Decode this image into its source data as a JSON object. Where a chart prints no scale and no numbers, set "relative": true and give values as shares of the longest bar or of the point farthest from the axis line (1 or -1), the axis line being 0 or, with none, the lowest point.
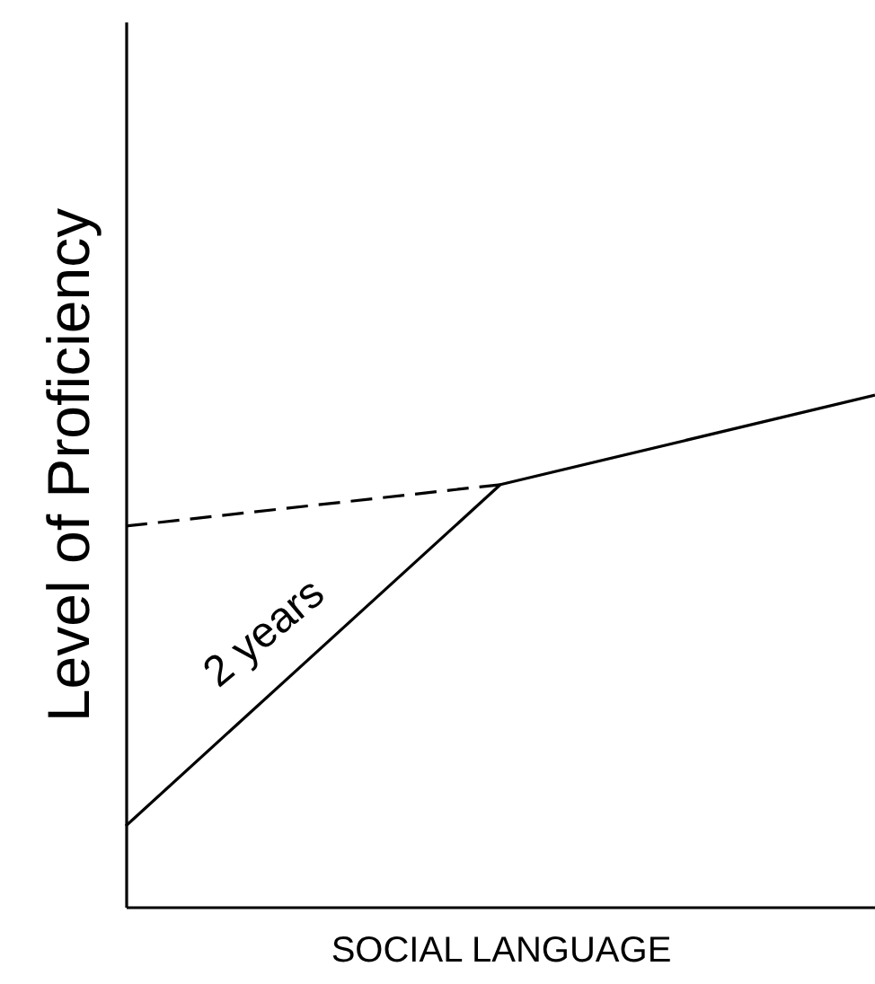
{
  "chart_data": {
    "type": "line",
    "relative": true,
    "xlabel": "SOCIAL LANGUAGE",
    "ylabel": "Level of Proficiency",
    "categories": [
      null,
      null,
      null
    ],
    "tick_labels": false,
    "grid": false,
    "marker": "none",
    "annotations": [
      "2 years"
    ],
    "series": [
      {
        "color": "#000000",
        "line_style": "solid",
        "values": [
          0.158,
          0.825,
          1
        ]
      },
      {
        "color": "#000000",
        "line_style": "dashed",
        "values": [
          0.744,
          0.825,
          null
        ]
      }
    ]
  }
}
